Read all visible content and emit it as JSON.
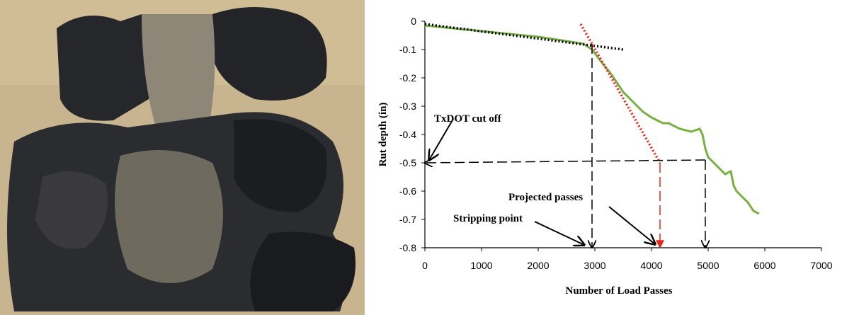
{
  "chart_data": {
    "type": "line",
    "x_label": "Number of Load Passes",
    "y_label": "Rut depth (in)",
    "xlim": [
      0,
      7000
    ],
    "xticks": [
      0,
      1000,
      2000,
      3000,
      4000,
      5000,
      6000,
      7000
    ],
    "ylim": [
      -0.8,
      0
    ],
    "yticks": [
      0,
      -0.1,
      -0.2,
      -0.3,
      -0.4,
      -0.5,
      -0.6,
      -0.7,
      -0.8
    ],
    "grid": false,
    "series": [
      {
        "color": "#77b041",
        "style": "solid",
        "x": [
          0,
          500,
          1000,
          1500,
          2000,
          2500,
          2800,
          2950,
          3100,
          3300,
          3500,
          3600,
          3700,
          3850,
          4000,
          4100,
          4200,
          4300,
          4400,
          4500,
          4700,
          4850,
          4900,
          4950,
          5000,
          5100,
          5200,
          5300,
          5400,
          5450,
          5500,
          5600,
          5700,
          5800,
          5900
        ],
        "values": [
          -0.015,
          -0.025,
          -0.035,
          -0.045,
          -0.055,
          -0.07,
          -0.08,
          -0.1,
          -0.14,
          -0.19,
          -0.25,
          -0.27,
          -0.29,
          -0.32,
          -0.34,
          -0.35,
          -0.36,
          -0.36,
          -0.37,
          -0.38,
          -0.39,
          -0.38,
          -0.4,
          -0.45,
          -0.48,
          -0.5,
          -0.52,
          -0.54,
          -0.53,
          -0.58,
          -0.6,
          -0.62,
          -0.64,
          -0.67,
          -0.68
        ]
      },
      {
        "color": "#000000",
        "style": "dotted",
        "x": [
          0,
          3500
        ],
        "values": [
          -0.01,
          -0.1
        ]
      },
      {
        "color": "#e8241b",
        "style": "dotted",
        "x": [
          2750,
          4150
        ],
        "values": [
          -0.01,
          -0.5
        ]
      },
      {
        "color": "#000000",
        "style": "dashed",
        "x": [
          2950,
          2950
        ],
        "values": [
          -0.08,
          -0.8
        ]
      },
      {
        "color": "#000000",
        "style": "dashed",
        "x": [
          4950,
          0
        ],
        "values": [
          -0.49,
          -0.5
        ]
      },
      {
        "color": "#000000",
        "style": "dashed",
        "x": [
          4950,
          4950
        ],
        "values": [
          -0.49,
          -0.8
        ]
      },
      {
        "color": "#e8241b",
        "style": "dashed",
        "x": [
          4150,
          4150
        ],
        "values": [
          -0.5,
          -0.8
        ]
      }
    ],
    "annotations": [
      "TxDOT cut off",
      "Projected passes",
      "Stripping point"
    ]
  }
}
